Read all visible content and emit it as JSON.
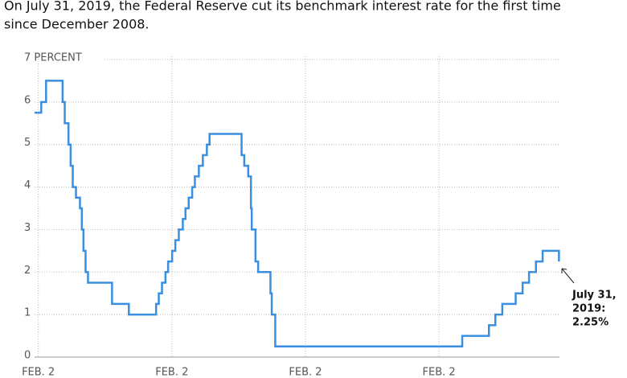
{
  "chart_data": {
    "type": "step",
    "title_lines": [
      "On July 31, 2019, the Federal Reserve cut its benchmark interest rate for the first time",
      "since December 2008."
    ],
    "annotation_lines": [
      "July 31,",
      "2019:",
      "2.25%"
    ],
    "x": [
      1999.95,
      2000.2,
      2000.38,
      2001.0,
      2001.08,
      2001.22,
      2001.3,
      2001.38,
      2001.5,
      2001.65,
      2001.72,
      2001.78,
      2001.86,
      2001.95,
      2002.85,
      2003.48,
      2004.5,
      2004.6,
      2004.72,
      2004.85,
      2004.95,
      2005.1,
      2005.22,
      2005.35,
      2005.5,
      2005.6,
      2005.72,
      2005.85,
      2005.95,
      2006.1,
      2006.25,
      2006.4,
      2006.5,
      2007.7,
      2007.8,
      2007.95,
      2008.05,
      2008.08,
      2008.22,
      2008.32,
      2008.78,
      2008.83,
      2008.96,
      2015.96,
      2016.96,
      2017.2,
      2017.46,
      2017.96,
      2018.22,
      2018.46,
      2018.72,
      2018.97,
      2019.58
    ],
    "values": [
      5.75,
      6.0,
      6.5,
      6.0,
      5.5,
      5.0,
      4.5,
      4.0,
      3.75,
      3.5,
      3.0,
      2.5,
      2.0,
      1.75,
      1.25,
      1.0,
      1.25,
      1.5,
      1.75,
      2.0,
      2.25,
      2.5,
      2.75,
      3.0,
      3.25,
      3.5,
      3.75,
      4.0,
      4.25,
      4.5,
      4.75,
      5.0,
      5.25,
      4.75,
      4.5,
      4.25,
      3.5,
      3.0,
      2.25,
      2.0,
      1.5,
      1.0,
      0.25,
      0.5,
      0.75,
      1.0,
      1.25,
      1.5,
      1.75,
      2.0,
      2.25,
      2.5,
      2.25
    ],
    "color": "#3a8fe0",
    "xlim": [
      1999.95,
      2019.6
    ],
    "xticks": [
      {
        "value": 2000.09,
        "label": "FEB. 2"
      },
      {
        "value": 2005.09,
        "label": "FEB. 2"
      },
      {
        "value": 2010.09,
        "label": "FEB. 2"
      },
      {
        "value": 2015.09,
        "label": "FEB. 2"
      }
    ],
    "ylim": [
      0,
      7
    ],
    "yticks": [
      0,
      1,
      2,
      3,
      4,
      5,
      6,
      {
        "value": 7,
        "label": "7 PERCENT"
      }
    ],
    "grid": true
  }
}
